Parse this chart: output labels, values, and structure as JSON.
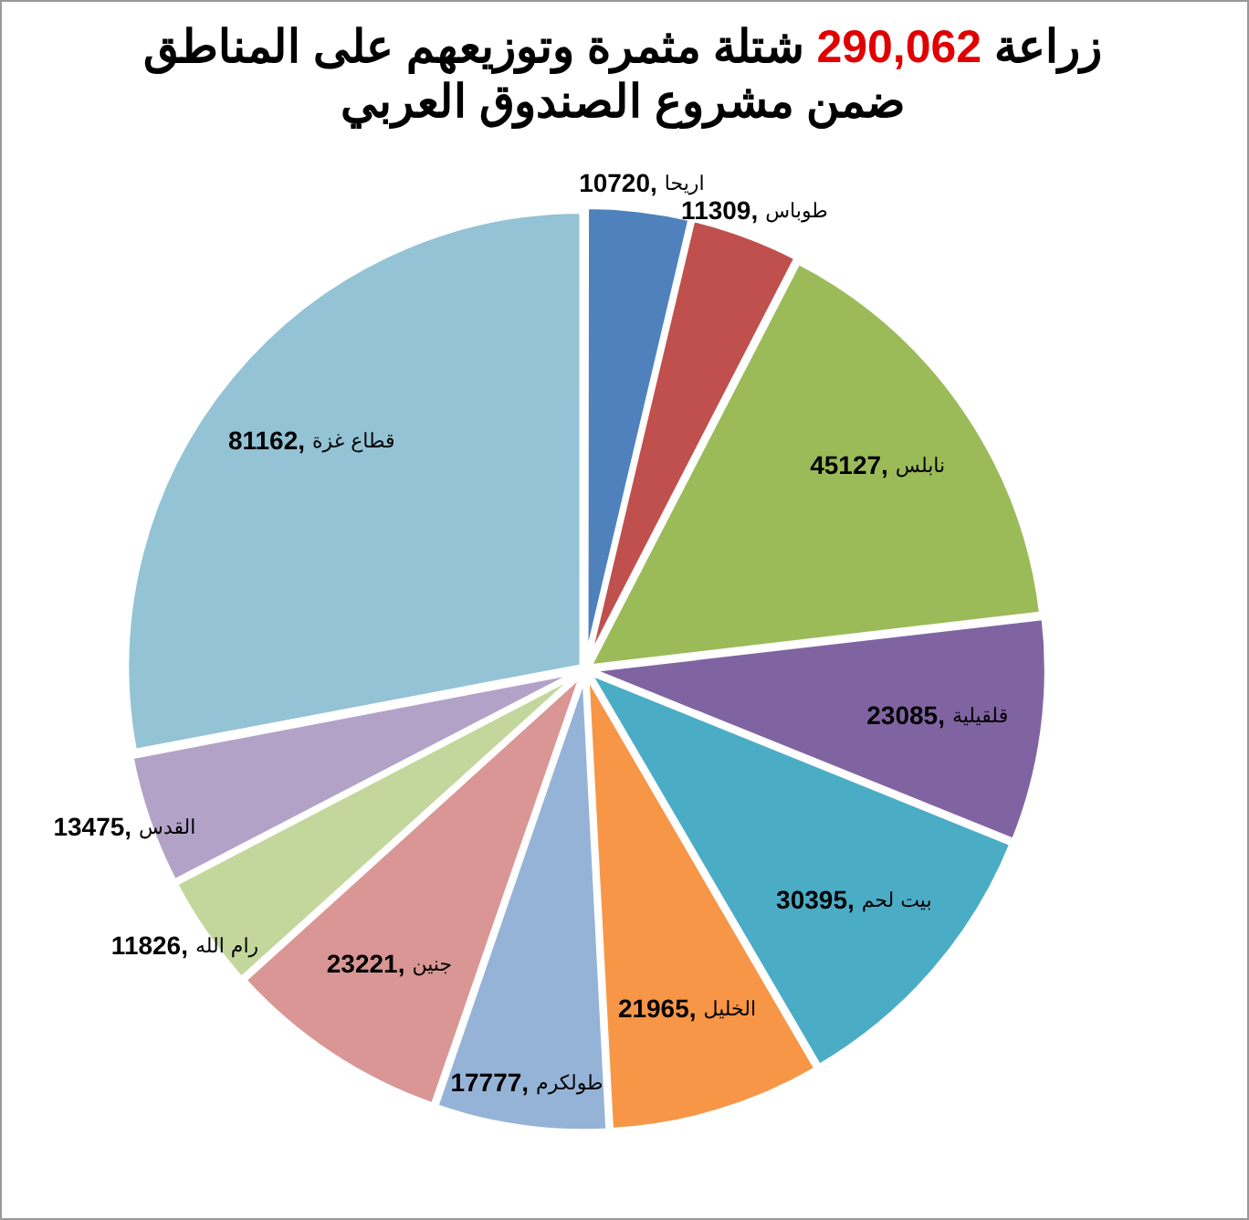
{
  "chart_data": {
    "type": "pie",
    "title": "زراعة 290,062 شتلة مثمرة وتوزيعهم على المناطق ضمن مشروع الصندوق العربي",
    "categories": [
      "اريحا",
      "طوباس",
      "نابلس",
      "قلقيلية",
      "بيت لحم",
      "الخليل",
      "طولكرم",
      "جنين",
      "رام الله",
      "القدس",
      "قطاع غزة"
    ],
    "values": [
      10720,
      11309,
      45127,
      23085,
      30395,
      21965,
      17777,
      23221,
      11826,
      13475,
      81162
    ],
    "colors": [
      "#4f81bd",
      "#c0504d",
      "#9bbb59",
      "#8064a2",
      "#4bacc6",
      "#f79646",
      "#95b3d7",
      "#d99694",
      "#c3d69b",
      "#b3a2c7",
      "#93c3d5"
    ],
    "value_labels": [
      "10720,",
      "11309,",
      "45127,",
      "23085,",
      "30395,",
      "21965,",
      "17777,",
      "23221,",
      "11826,",
      "13475,",
      "81162,"
    ],
    "legend": false
  }
}
